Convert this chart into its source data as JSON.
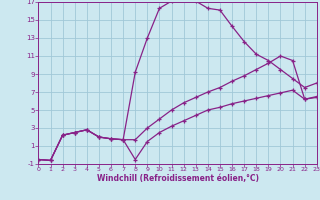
{
  "bg_color": "#cce8f0",
  "grid_color": "#a0c8d8",
  "line_color": "#882288",
  "xlabel": "Windchill (Refroidissement éolien,°C)",
  "xlim": [
    0,
    23
  ],
  "ylim": [
    -1,
    17
  ],
  "xticks": [
    0,
    1,
    2,
    3,
    4,
    5,
    6,
    7,
    8,
    9,
    10,
    11,
    12,
    13,
    14,
    15,
    16,
    17,
    18,
    19,
    20,
    21,
    22,
    23
  ],
  "yticks": [
    -1,
    1,
    3,
    5,
    7,
    9,
    11,
    13,
    15,
    17
  ],
  "curve1_x": [
    0,
    1,
    2,
    3,
    4,
    5,
    6,
    7,
    8,
    9,
    10,
    11,
    12,
    13,
    14,
    15,
    16,
    17,
    18,
    19,
    20,
    21,
    22,
    23
  ],
  "curve1_y": [
    -0.5,
    -0.6,
    2.2,
    2.5,
    2.8,
    2.0,
    1.8,
    1.7,
    9.2,
    13.0,
    16.3,
    17.1,
    17.3,
    17.1,
    16.3,
    16.1,
    14.3,
    12.6,
    11.2,
    10.5,
    9.5,
    8.5,
    7.5,
    8.0
  ],
  "curve2_x": [
    0,
    1,
    2,
    3,
    4,
    5,
    6,
    7,
    8,
    9,
    10,
    11,
    12,
    13,
    14,
    15,
    16,
    17,
    18,
    19,
    20,
    21,
    22,
    23
  ],
  "curve2_y": [
    -0.5,
    -0.6,
    2.2,
    2.5,
    2.8,
    2.0,
    1.8,
    1.7,
    1.7,
    3.0,
    4.0,
    5.0,
    5.8,
    6.4,
    7.0,
    7.5,
    8.2,
    8.8,
    9.5,
    10.2,
    11.0,
    10.5,
    6.2,
    6.4
  ],
  "curve3_x": [
    0,
    1,
    2,
    3,
    4,
    5,
    6,
    7,
    8,
    9,
    10,
    11,
    12,
    13,
    14,
    15,
    16,
    17,
    18,
    19,
    20,
    21,
    22,
    23
  ],
  "curve3_y": [
    -0.5,
    -0.6,
    2.2,
    2.5,
    2.8,
    2.0,
    1.8,
    1.7,
    -0.5,
    1.5,
    2.5,
    3.2,
    3.8,
    4.4,
    5.0,
    5.3,
    5.7,
    6.0,
    6.3,
    6.6,
    6.9,
    7.2,
    6.2,
    6.5
  ]
}
